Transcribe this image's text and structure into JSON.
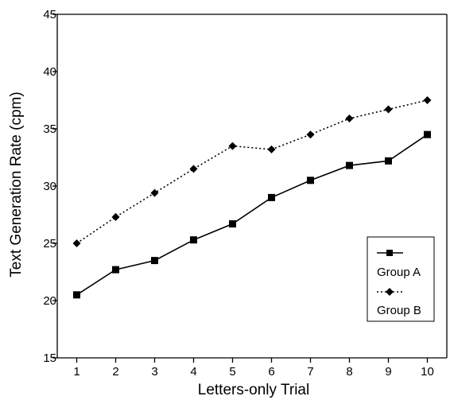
{
  "chart_data": {
    "type": "line",
    "xlabel": "Letters-only Trial",
    "ylabel": "Text Generation Rate (cpm)",
    "x": [
      1,
      2,
      3,
      4,
      5,
      6,
      7,
      8,
      9,
      10
    ],
    "xlim": [
      0.5,
      10.5
    ],
    "ylim": [
      15,
      45
    ],
    "yticks": [
      15,
      20,
      25,
      30,
      35,
      40,
      45
    ],
    "grid": false,
    "legend_position": "right",
    "series": [
      {
        "name": "Group A",
        "line_style": "solid",
        "marker": "square",
        "color": "#000000",
        "values": [
          20.5,
          22.7,
          23.5,
          25.3,
          26.7,
          29.0,
          30.5,
          31.8,
          32.2,
          34.5
        ]
      },
      {
        "name": "Group B",
        "line_style": "dotted",
        "marker": "diamond",
        "color": "#000000",
        "values": [
          25.0,
          27.3,
          29.4,
          31.5,
          33.5,
          33.2,
          34.5,
          35.9,
          36.7,
          37.5
        ]
      }
    ]
  }
}
